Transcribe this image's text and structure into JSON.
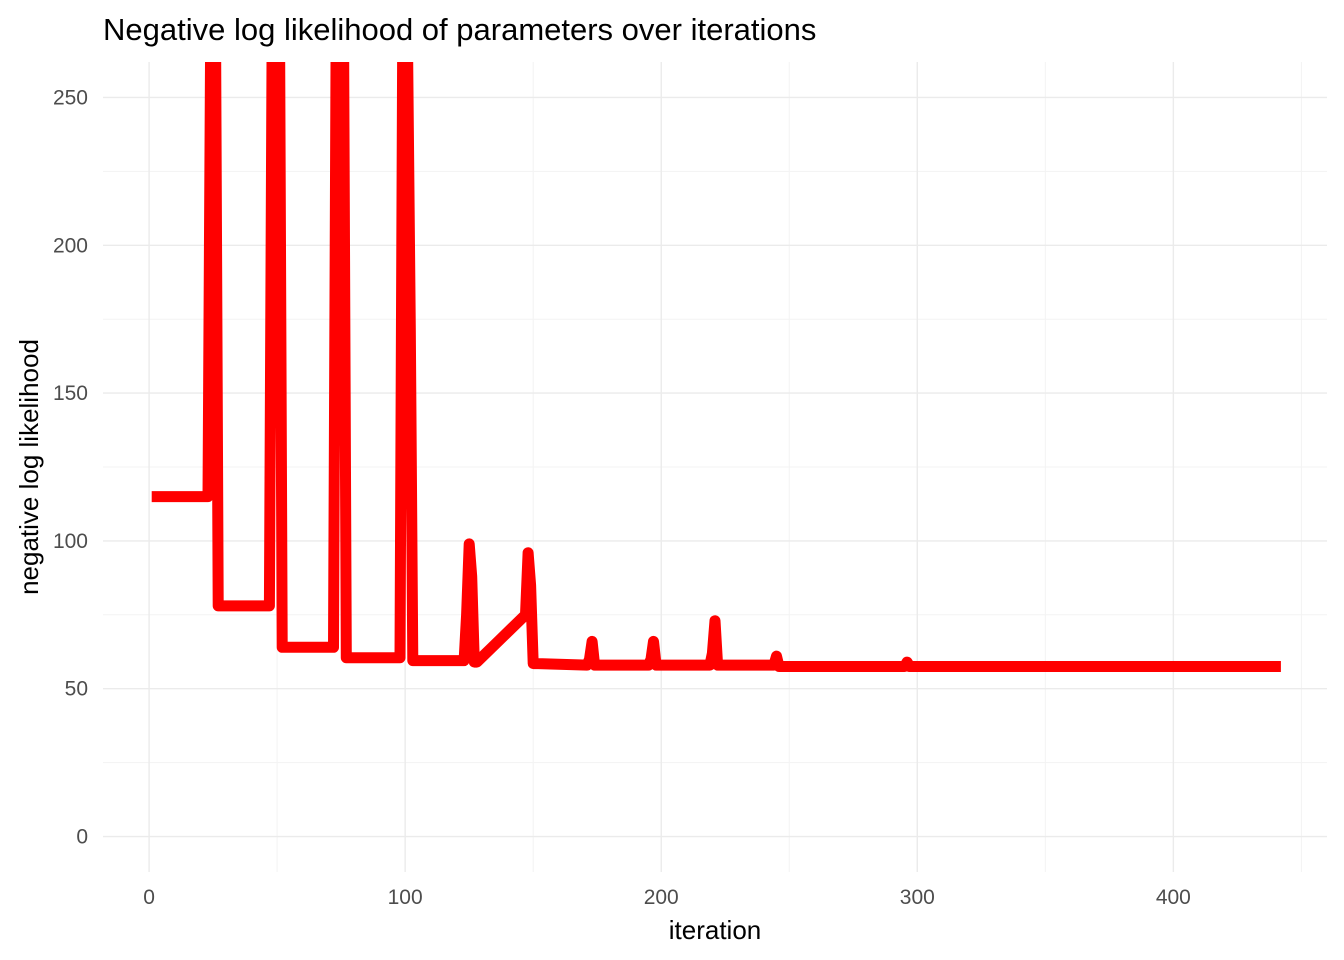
{
  "chart_data": {
    "type": "line",
    "title": "Negative log likelihood of parameters over iterations",
    "xlabel": "iteration",
    "ylabel": "negative log likelihood",
    "xlim": [
      -18,
      460
    ],
    "ylim": [
      -12,
      262
    ],
    "xticks": [
      0,
      100,
      200,
      300,
      400
    ],
    "yticks": [
      0,
      50,
      100,
      150,
      200,
      250
    ],
    "x_minor": [
      50,
      150,
      250,
      350,
      450
    ],
    "y_minor": [
      25,
      75,
      125,
      175,
      225
    ],
    "grid": true,
    "legend": "none",
    "series": [
      {
        "color": "#ff0000",
        "x": [
          1,
          23,
          24,
          25,
          26,
          27,
          47,
          48,
          49,
          50,
          51,
          52,
          72,
          73,
          74,
          75,
          76,
          77,
          98,
          99,
          100,
          101,
          102,
          103,
          123,
          124,
          125,
          126,
          127,
          128,
          147,
          148,
          149,
          150,
          151,
          152,
          171,
          172,
          173,
          174,
          175,
          176,
          195,
          196,
          197,
          198,
          199,
          200,
          219,
          220,
          221,
          222,
          223,
          224,
          243,
          244,
          245,
          246,
          247,
          248,
          295,
          296,
          297,
          298,
          442
        ],
        "y": [
          115,
          115,
          262,
          262,
          262,
          78,
          78,
          262,
          262,
          262,
          262,
          64,
          64,
          262,
          262,
          262,
          262,
          60.5,
          60.5,
          262,
          262,
          262,
          172,
          59.5,
          59.5,
          75,
          99,
          88,
          59,
          59,
          75,
          96,
          85,
          58.5,
          58.5,
          58.5,
          58,
          60,
          66,
          58,
          58,
          58,
          58,
          60,
          66,
          58,
          58,
          58,
          58,
          62,
          73,
          58,
          58,
          58,
          58,
          58,
          61,
          57.5,
          57.5,
          57.5,
          57.5,
          59,
          57.5,
          57.5,
          57.5
        ]
      }
    ]
  }
}
